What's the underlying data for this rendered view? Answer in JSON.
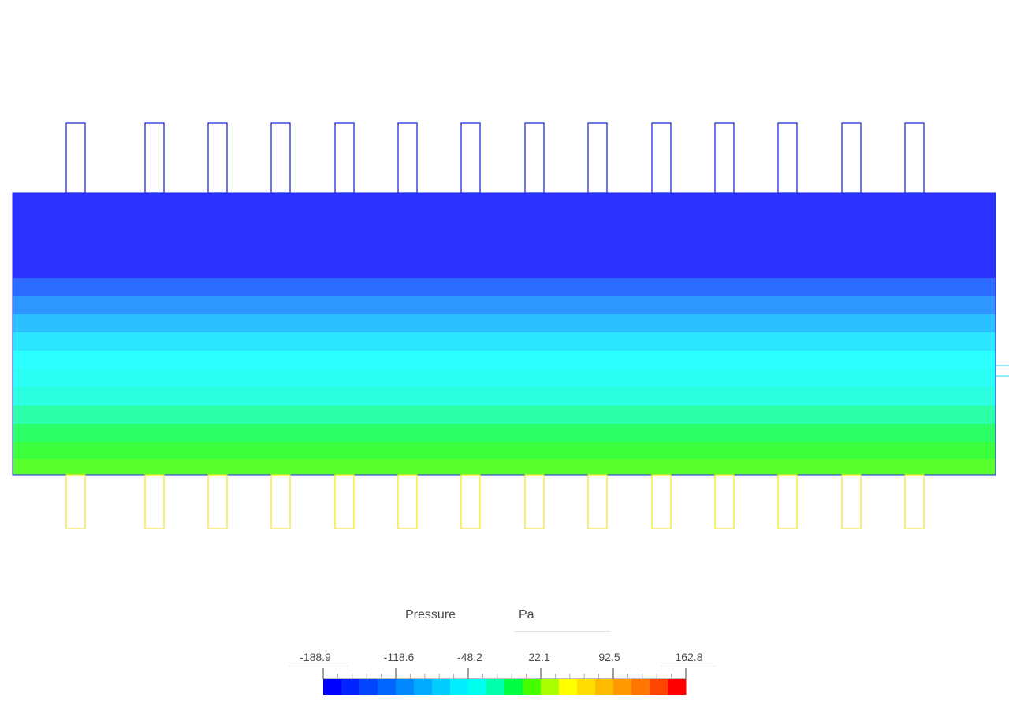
{
  "legend": {
    "quantity": "Pressure",
    "unit": "Pa",
    "tick_labels": [
      "-188.9",
      "-118.6",
      "-48.2",
      "22.1",
      "92.5",
      "162.8"
    ],
    "range": [
      -188.9,
      162.8
    ],
    "colors": [
      "#0000ff",
      "#0022ff",
      "#0044ff",
      "#0066ff",
      "#0088ff",
      "#00aaff",
      "#00ccff",
      "#00eeff",
      "#00ffee",
      "#00ffaa",
      "#00ff44",
      "#44ff00",
      "#aaff00",
      "#ffff00",
      "#ffdd00",
      "#ffbb00",
      "#ff9900",
      "#ff7700",
      "#ff4400",
      "#ff0000"
    ]
  },
  "field": {
    "bands": [
      {
        "color": "#2b32ff"
      },
      {
        "color": "#2b6bff"
      },
      {
        "color": "#2d97ff"
      },
      {
        "color": "#2bc0ff"
      },
      {
        "color": "#2be6ff"
      },
      {
        "color": "#2bffff"
      },
      {
        "color": "#2bfff4"
      },
      {
        "color": "#2bffe0"
      },
      {
        "color": "#2bffa8"
      },
      {
        "color": "#2bff66"
      },
      {
        "color": "#3bff3b"
      },
      {
        "color": "#59ff2b"
      }
    ],
    "inlet_color": "#0a1ed8",
    "outlet_color": "#f2e51a",
    "pipe_count": 14
  }
}
